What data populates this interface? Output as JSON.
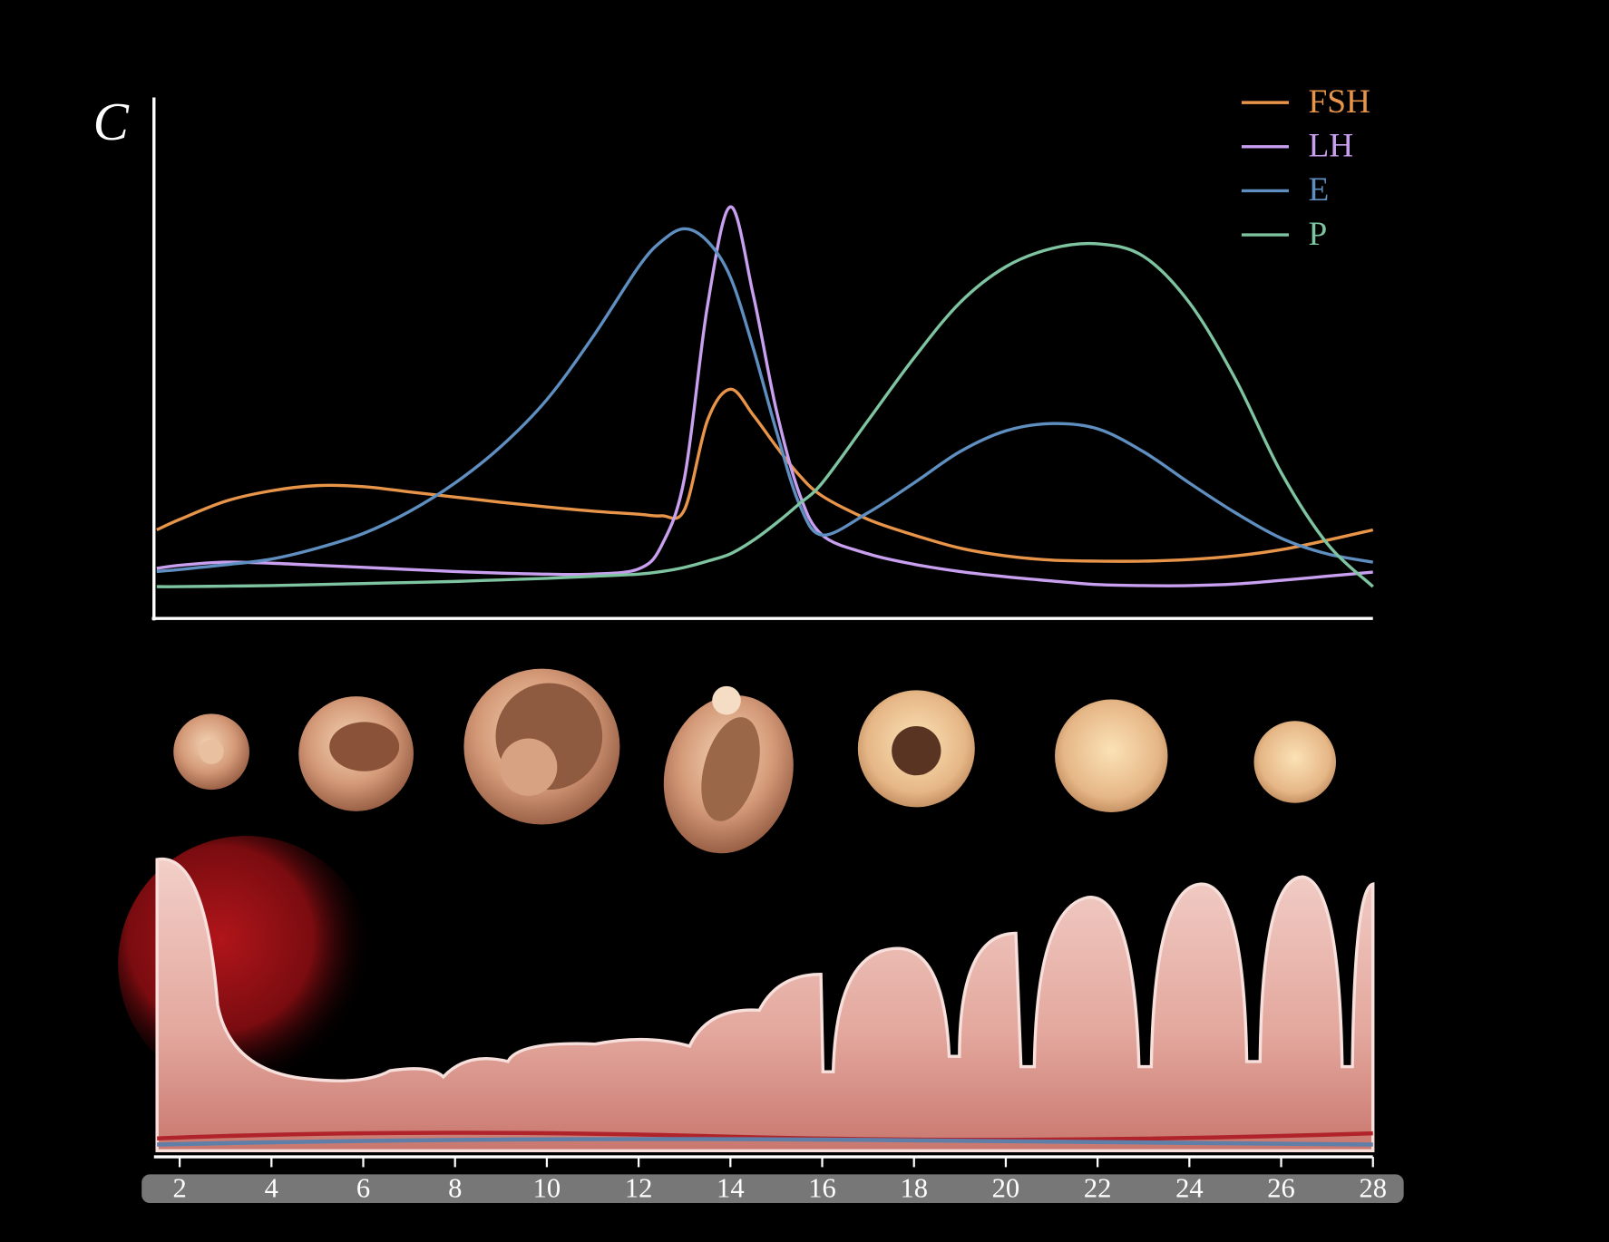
{
  "chart_data": {
    "type": "line",
    "y_label": "C",
    "x": [
      1.5,
      2,
      3,
      4,
      5,
      6,
      7,
      8,
      9,
      10,
      11,
      12,
      12.5,
      13,
      13.5,
      14,
      14.5,
      15,
      15.5,
      16,
      17,
      18,
      19,
      20,
      21,
      22,
      23,
      24,
      25,
      26,
      27,
      28
    ],
    "series": [
      {
        "name": "FSH",
        "color": "#e8954a",
        "values": [
          17,
          19,
          22.5,
          24.5,
          25.5,
          25.3,
          24.3,
          23.3,
          22.3,
          21.4,
          20.6,
          20,
          19.7,
          20.9,
          38,
          44,
          39,
          33,
          27.5,
          23.5,
          19,
          16,
          13.5,
          12,
          11.2,
          11,
          11,
          11.3,
          12,
          13.2,
          15,
          17
        ]
      },
      {
        "name": "LH",
        "color": "#c9a0f0",
        "values": [
          9.6,
          10.2,
          10.8,
          10.6,
          10.2,
          9.8,
          9.4,
          9,
          8.7,
          8.5,
          8.5,
          9.5,
          14,
          27,
          60,
          79,
          62,
          40,
          24,
          16,
          12.4,
          10.4,
          9,
          8,
          7.2,
          6.5,
          6.3,
          6.3,
          6.6,
          7.3,
          8.1,
          8.9
        ]
      },
      {
        "name": "E",
        "color": "#5f8fc0",
        "values": [
          9,
          9.4,
          10.3,
          11.4,
          13.5,
          16.3,
          20.5,
          26,
          33,
          42,
          54,
          67.5,
          72.4,
          74.8,
          72.4,
          65.5,
          51.8,
          36,
          22,
          16,
          20.3,
          26,
          32,
          36,
          37.4,
          36.4,
          32,
          26,
          20.3,
          15.4,
          12.4,
          10.8
        ]
      },
      {
        "name": "P",
        "color": "#7fc4a0",
        "values": [
          6.1,
          6.1,
          6.2,
          6.3,
          6.5,
          6.7,
          6.9,
          7.1,
          7.4,
          7.7,
          8.1,
          8.5,
          9,
          9.8,
          11,
          12.4,
          15,
          18.3,
          22,
          26,
          38,
          50,
          60.6,
          67.5,
          71,
          71.9,
          69.5,
          60.6,
          46,
          28,
          14.4,
          6.1
        ]
      }
    ],
    "xlim": [
      1.44,
      28
    ],
    "ylim": [
      0,
      100
    ],
    "xticks": [
      2,
      4,
      6,
      8,
      10,
      12,
      14,
      16,
      18,
      20,
      22,
      24,
      26,
      28
    ],
    "legend": "top-right"
  }
}
